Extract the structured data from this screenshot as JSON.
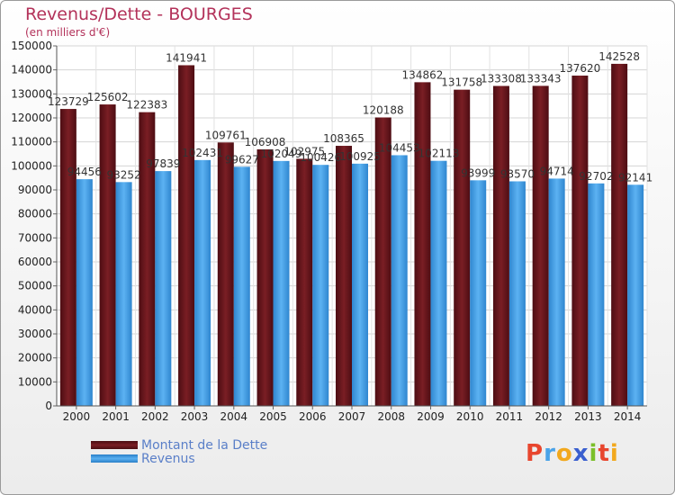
{
  "header": {
    "title": "Revenus/Dette - BOURGES",
    "subtitle": "(en milliers d'€)"
  },
  "chart_data": {
    "type": "bar",
    "title": "Revenus/Dette - BOURGES",
    "ylabel": "(en milliers d'€)",
    "ylim": [
      0,
      150000
    ],
    "yticks": [
      0,
      10000,
      20000,
      30000,
      40000,
      50000,
      60000,
      70000,
      80000,
      90000,
      100000,
      110000,
      120000,
      130000,
      140000,
      150000
    ],
    "grid": true,
    "legend_position": "bottom-left",
    "categories": [
      "2000",
      "2001",
      "2002",
      "2003",
      "2004",
      "2005",
      "2006",
      "2007",
      "2008",
      "2009",
      "2010",
      "2011",
      "2012",
      "2013",
      "2014"
    ],
    "series": [
      {
        "name": "Montant de la Dette",
        "color": "#7a1e24",
        "values": [
          123729,
          125602,
          122383,
          141941,
          109761,
          106908,
          102975,
          108365,
          120188,
          134862,
          131758,
          133308,
          133343,
          137620,
          142528
        ]
      },
      {
        "name": "Revenus",
        "color": "#4aa3e8",
        "values": [
          94456,
          93252,
          97839,
          102431,
          99627,
          102049,
          100426,
          100925,
          104453,
          102113,
          93999,
          93570,
          94714,
          92702,
          92141
        ]
      }
    ]
  },
  "legend": {
    "items": [
      {
        "label": "Montant de la Dette",
        "color": "#7a1e24"
      },
      {
        "label": "Revenus",
        "color": "#4aa3e8"
      }
    ]
  },
  "logo": {
    "letters": [
      "P",
      "r",
      "o",
      "x",
      "i",
      "t",
      "i"
    ],
    "colors": [
      "#e8462e",
      "#4aa3e8",
      "#f2a81d",
      "#3a5fcf",
      "#7bbf2a",
      "#e8462e",
      "#f2a81d"
    ]
  }
}
